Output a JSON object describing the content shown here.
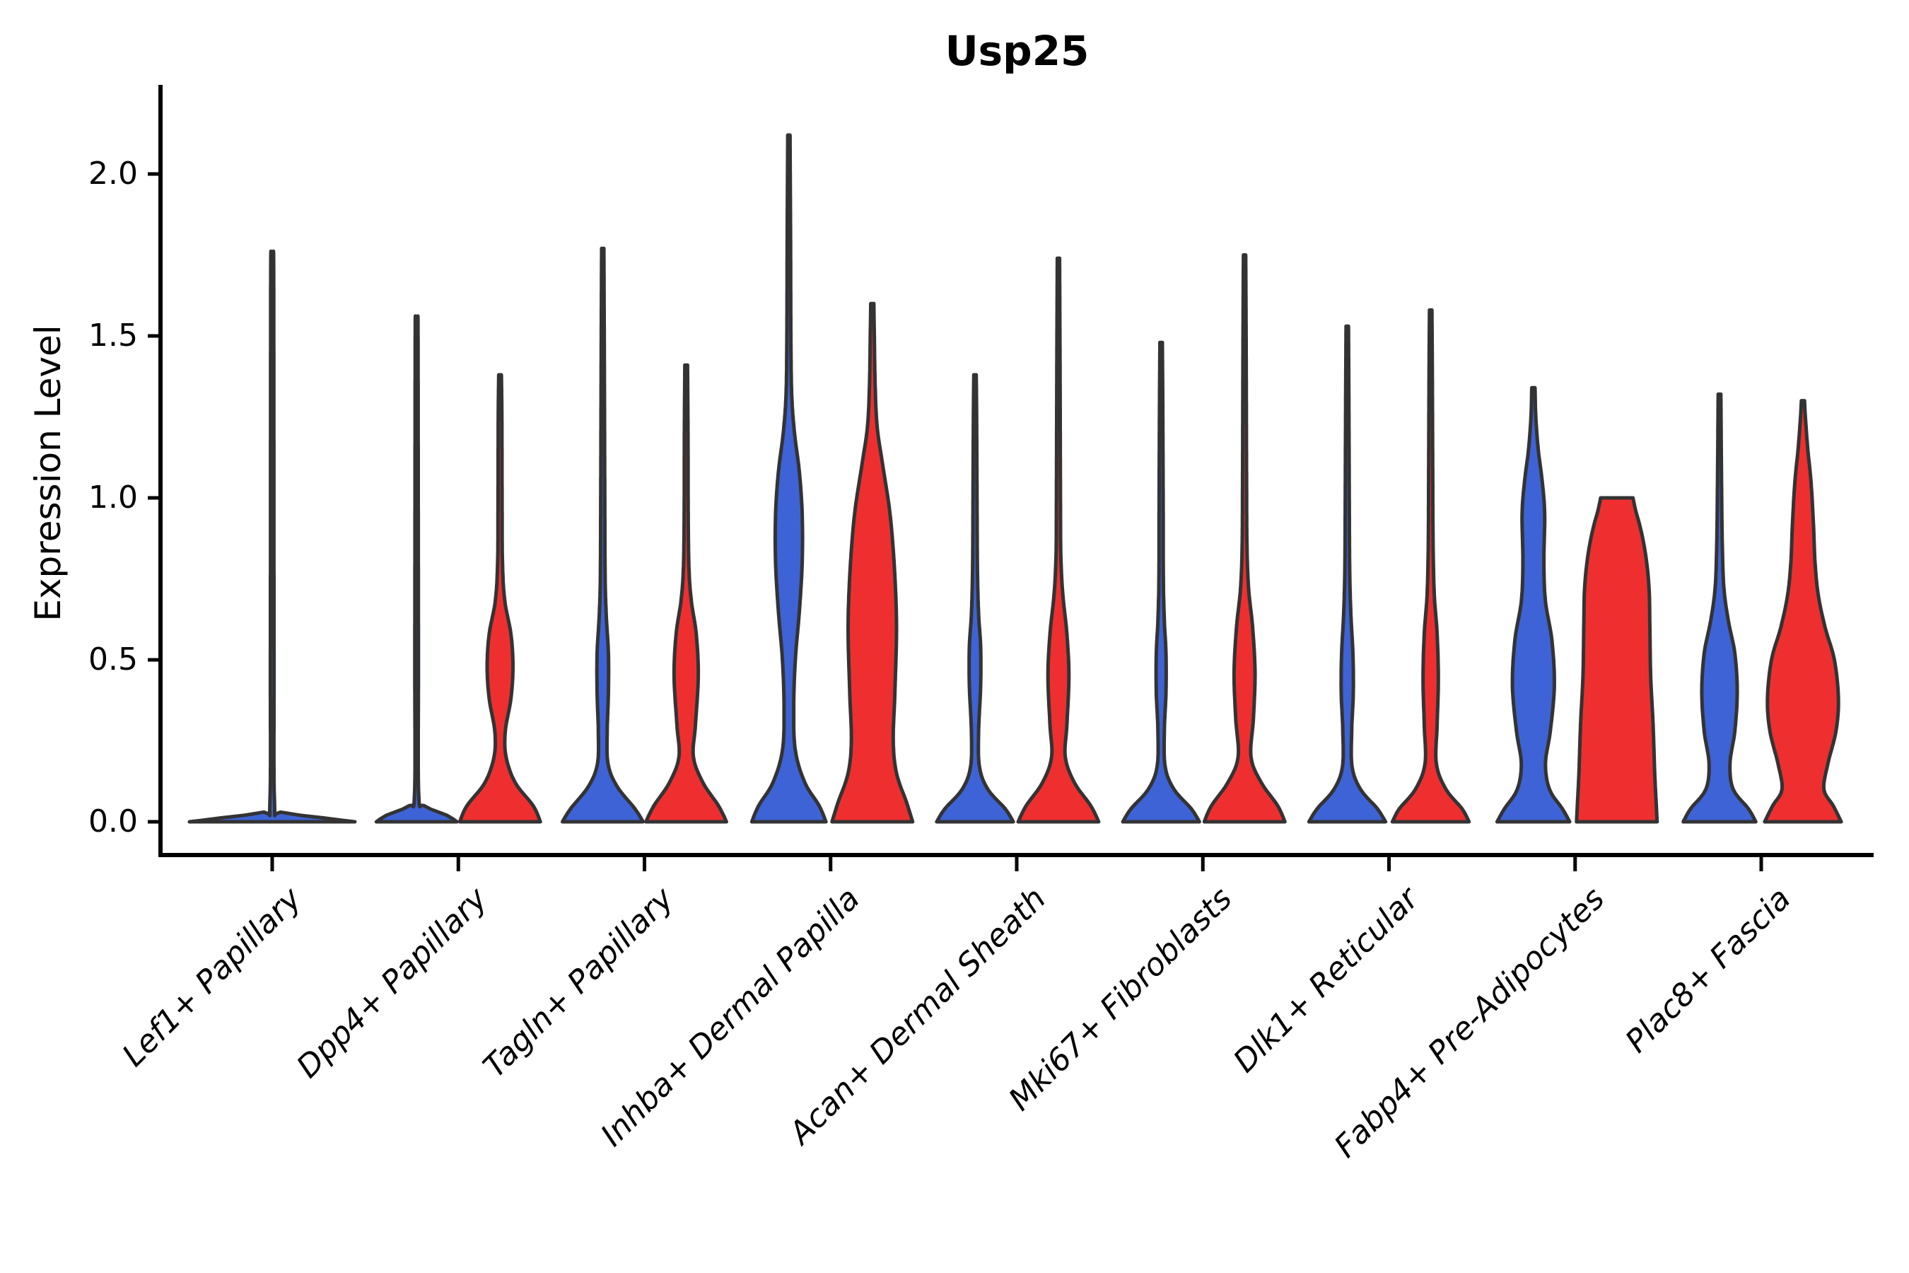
{
  "chart_data": {
    "type": "violin",
    "title": "Usp25",
    "xlabel": "",
    "ylabel": "Expression Level",
    "ylim": [
      -0.09,
      2.28
    ],
    "yticks": [
      "0.0",
      "0.5",
      "1.0",
      "1.5",
      "2.0"
    ],
    "ytick_values": [
      0.0,
      0.5,
      1.0,
      1.5,
      2.0
    ],
    "grid": "off",
    "legend": "none",
    "split_colors": {
      "blue": "#3E63D6",
      "red": "#EF2F2F"
    },
    "outline_color": "#333333",
    "categories": [
      "Lef1+ Papillary",
      "Dpp4+ Papillary",
      "Tagln+ Papillary",
      "Inhba+ Dermal Papilla",
      "Acan+ Dermal Sheath",
      "Mki67+ Fibroblasts",
      "Dlk1+ Reticular",
      "Fabp4+ Pre-Adipocytes",
      "Plac8+ Fascia"
    ],
    "groups": [
      {
        "category": "Lef1+ Papillary",
        "violins": [
          {
            "split": "blue",
            "single": true,
            "max_expression": 1.76,
            "profile": [
              [
                0,
                1.0
              ],
              [
                0.012,
                0.62
              ],
              [
                0.03,
                0.1
              ],
              [
                0.06,
                0.028
              ],
              [
                0.5,
                0.022
              ],
              [
                1.2,
                0.02
              ],
              [
                1.7,
                0.018
              ],
              [
                1.76,
                0.014
              ]
            ]
          }
        ]
      },
      {
        "category": "Dpp4+ Papillary",
        "violins": [
          {
            "split": "blue",
            "single": false,
            "max_expression": 1.56,
            "profile": [
              [
                0,
                1.0
              ],
              [
                0.02,
                0.75
              ],
              [
                0.05,
                0.18
              ],
              [
                0.09,
                0.05
              ],
              [
                0.5,
                0.045
              ],
              [
                1.0,
                0.04
              ],
              [
                1.5,
                0.035
              ],
              [
                1.56,
                0.028
              ]
            ]
          },
          {
            "split": "red",
            "single": false,
            "max_expression": 1.38,
            "profile": [
              [
                0,
                1.0
              ],
              [
                0.05,
                0.82
              ],
              [
                0.12,
                0.38
              ],
              [
                0.2,
                0.15
              ],
              [
                0.28,
                0.13
              ],
              [
                0.38,
                0.27
              ],
              [
                0.48,
                0.32
              ],
              [
                0.58,
                0.27
              ],
              [
                0.68,
                0.12
              ],
              [
                0.8,
                0.06
              ],
              [
                1.0,
                0.05
              ],
              [
                1.25,
                0.045
              ],
              [
                1.38,
                0.033
              ]
            ]
          }
        ]
      },
      {
        "category": "Tagln+ Papillary",
        "violins": [
          {
            "split": "blue",
            "single": false,
            "max_expression": 1.77,
            "profile": [
              [
                0,
                1.0
              ],
              [
                0.04,
                0.8
              ],
              [
                0.11,
                0.35
              ],
              [
                0.18,
                0.13
              ],
              [
                0.28,
                0.11
              ],
              [
                0.4,
                0.14
              ],
              [
                0.52,
                0.14
              ],
              [
                0.63,
                0.09
              ],
              [
                0.75,
                0.06
              ],
              [
                1.0,
                0.05
              ],
              [
                1.4,
                0.04
              ],
              [
                1.77,
                0.028
              ]
            ]
          },
          {
            "split": "red",
            "single": false,
            "max_expression": 1.41,
            "profile": [
              [
                0,
                1.0
              ],
              [
                0.05,
                0.8
              ],
              [
                0.12,
                0.42
              ],
              [
                0.2,
                0.18
              ],
              [
                0.3,
                0.23
              ],
              [
                0.45,
                0.3
              ],
              [
                0.58,
                0.25
              ],
              [
                0.68,
                0.13
              ],
              [
                0.78,
                0.07
              ],
              [
                0.95,
                0.05
              ],
              [
                1.2,
                0.045
              ],
              [
                1.41,
                0.033
              ]
            ]
          }
        ]
      },
      {
        "category": "Inhba+ Dermal Papilla",
        "violins": [
          {
            "split": "blue",
            "single": false,
            "max_expression": 2.12,
            "profile": [
              [
                0,
                0.92
              ],
              [
                0.05,
                0.75
              ],
              [
                0.12,
                0.4
              ],
              [
                0.22,
                0.16
              ],
              [
                0.35,
                0.12
              ],
              [
                0.5,
                0.16
              ],
              [
                0.65,
                0.26
              ],
              [
                0.8,
                0.33
              ],
              [
                0.95,
                0.33
              ],
              [
                1.08,
                0.26
              ],
              [
                1.2,
                0.14
              ],
              [
                1.32,
                0.07
              ],
              [
                1.5,
                0.05
              ],
              [
                1.8,
                0.042
              ],
              [
                2.12,
                0.028
              ]
            ]
          },
          {
            "split": "red",
            "single": false,
            "max_expression": 1.6,
            "profile": [
              [
                0,
                1.0
              ],
              [
                0.06,
                0.85
              ],
              [
                0.15,
                0.6
              ],
              [
                0.25,
                0.52
              ],
              [
                0.4,
                0.56
              ],
              [
                0.6,
                0.6
              ],
              [
                0.78,
                0.55
              ],
              [
                0.95,
                0.44
              ],
              [
                1.1,
                0.26
              ],
              [
                1.22,
                0.12
              ],
              [
                1.35,
                0.07
              ],
              [
                1.5,
                0.05
              ],
              [
                1.6,
                0.038
              ]
            ]
          }
        ]
      },
      {
        "category": "Acan+ Dermal Sheath",
        "violins": [
          {
            "split": "blue",
            "single": false,
            "max_expression": 1.38,
            "profile": [
              [
                0,
                0.95
              ],
              [
                0.04,
                0.75
              ],
              [
                0.1,
                0.32
              ],
              [
                0.17,
                0.11
              ],
              [
                0.28,
                0.09
              ],
              [
                0.42,
                0.14
              ],
              [
                0.54,
                0.14
              ],
              [
                0.64,
                0.09
              ],
              [
                0.78,
                0.06
              ],
              [
                1.0,
                0.05
              ],
              [
                1.25,
                0.04
              ],
              [
                1.38,
                0.03
              ]
            ]
          },
          {
            "split": "red",
            "single": false,
            "max_expression": 1.74,
            "profile": [
              [
                0,
                1.0
              ],
              [
                0.05,
                0.8
              ],
              [
                0.12,
                0.4
              ],
              [
                0.2,
                0.17
              ],
              [
                0.3,
                0.21
              ],
              [
                0.45,
                0.26
              ],
              [
                0.58,
                0.21
              ],
              [
                0.7,
                0.11
              ],
              [
                0.82,
                0.06
              ],
              [
                1.0,
                0.05
              ],
              [
                1.4,
                0.04
              ],
              [
                1.74,
                0.028
              ]
            ]
          }
        ]
      },
      {
        "category": "Mki67+ Fibroblasts",
        "violins": [
          {
            "split": "blue",
            "single": false,
            "max_expression": 1.48,
            "profile": [
              [
                0,
                0.95
              ],
              [
                0.04,
                0.75
              ],
              [
                0.1,
                0.32
              ],
              [
                0.17,
                0.1
              ],
              [
                0.28,
                0.08
              ],
              [
                0.4,
                0.12
              ],
              [
                0.52,
                0.12
              ],
              [
                0.62,
                0.08
              ],
              [
                0.75,
                0.055
              ],
              [
                1.0,
                0.05
              ],
              [
                1.3,
                0.04
              ],
              [
                1.48,
                0.03
              ]
            ]
          },
          {
            "split": "red",
            "single": false,
            "max_expression": 1.75,
            "profile": [
              [
                0,
                1.0
              ],
              [
                0.05,
                0.82
              ],
              [
                0.12,
                0.42
              ],
              [
                0.2,
                0.16
              ],
              [
                0.32,
                0.22
              ],
              [
                0.46,
                0.26
              ],
              [
                0.6,
                0.2
              ],
              [
                0.72,
                0.1
              ],
              [
                0.85,
                0.06
              ],
              [
                1.05,
                0.05
              ],
              [
                1.45,
                0.04
              ],
              [
                1.75,
                0.028
              ]
            ]
          }
        ]
      },
      {
        "category": "Dlk1+ Reticular",
        "violins": [
          {
            "split": "blue",
            "single": false,
            "max_expression": 1.53,
            "profile": [
              [
                0,
                0.95
              ],
              [
                0.04,
                0.75
              ],
              [
                0.1,
                0.33
              ],
              [
                0.17,
                0.12
              ],
              [
                0.28,
                0.11
              ],
              [
                0.4,
                0.15
              ],
              [
                0.52,
                0.14
              ],
              [
                0.64,
                0.09
              ],
              [
                0.78,
                0.06
              ],
              [
                1.0,
                0.05
              ],
              [
                1.3,
                0.04
              ],
              [
                1.53,
                0.03
              ]
            ]
          },
          {
            "split": "red",
            "single": false,
            "max_expression": 1.58,
            "profile": [
              [
                0,
                0.95
              ],
              [
                0.04,
                0.78
              ],
              [
                0.1,
                0.38
              ],
              [
                0.18,
                0.14
              ],
              [
                0.3,
                0.16
              ],
              [
                0.44,
                0.19
              ],
              [
                0.58,
                0.16
              ],
              [
                0.7,
                0.09
              ],
              [
                0.85,
                0.06
              ],
              [
                1.1,
                0.05
              ],
              [
                1.4,
                0.04
              ],
              [
                1.58,
                0.03
              ]
            ]
          }
        ]
      },
      {
        "category": "Fabp4+ Pre-Adipocytes",
        "violins": [
          {
            "split": "blue",
            "single": false,
            "max_expression": 1.34,
            "profile": [
              [
                0,
                0.9
              ],
              [
                0.04,
                0.72
              ],
              [
                0.1,
                0.4
              ],
              [
                0.18,
                0.3
              ],
              [
                0.28,
                0.42
              ],
              [
                0.42,
                0.52
              ],
              [
                0.56,
                0.46
              ],
              [
                0.68,
                0.3
              ],
              [
                0.8,
                0.26
              ],
              [
                0.95,
                0.28
              ],
              [
                1.05,
                0.22
              ],
              [
                1.15,
                0.12
              ],
              [
                1.25,
                0.06
              ],
              [
                1.34,
                0.04
              ]
            ]
          },
          {
            "split": "red",
            "single": false,
            "max_expression": 1.0,
            "flat_top": true,
            "profile": [
              [
                0,
                1.0
              ],
              [
                0.05,
                0.98
              ],
              [
                0.15,
                0.94
              ],
              [
                0.3,
                0.9
              ],
              [
                0.45,
                0.84
              ],
              [
                0.6,
                0.82
              ],
              [
                0.72,
                0.8
              ],
              [
                0.82,
                0.72
              ],
              [
                0.9,
                0.6
              ],
              [
                0.96,
                0.47
              ],
              [
                1.0,
                0.4
              ]
            ]
          }
        ]
      },
      {
        "category": "Plac8+ Fascia",
        "violins": [
          {
            "split": "blue",
            "single": false,
            "max_expression": 1.32,
            "profile": [
              [
                0,
                0.9
              ],
              [
                0.04,
                0.72
              ],
              [
                0.1,
                0.34
              ],
              [
                0.18,
                0.26
              ],
              [
                0.28,
                0.38
              ],
              [
                0.4,
                0.44
              ],
              [
                0.52,
                0.38
              ],
              [
                0.62,
                0.22
              ],
              [
                0.72,
                0.11
              ],
              [
                0.85,
                0.07
              ],
              [
                1.05,
                0.05
              ],
              [
                1.32,
                0.033
              ]
            ]
          },
          {
            "split": "red",
            "single": false,
            "max_expression": 1.3,
            "profile": [
              [
                0,
                0.95
              ],
              [
                0.05,
                0.75
              ],
              [
                0.1,
                0.52
              ],
              [
                0.18,
                0.62
              ],
              [
                0.28,
                0.82
              ],
              [
                0.38,
                0.88
              ],
              [
                0.5,
                0.78
              ],
              [
                0.6,
                0.55
              ],
              [
                0.7,
                0.38
              ],
              [
                0.8,
                0.3
              ],
              [
                0.92,
                0.26
              ],
              [
                1.05,
                0.2
              ],
              [
                1.15,
                0.12
              ],
              [
                1.25,
                0.06
              ],
              [
                1.3,
                0.038
              ]
            ]
          }
        ]
      }
    ]
  }
}
